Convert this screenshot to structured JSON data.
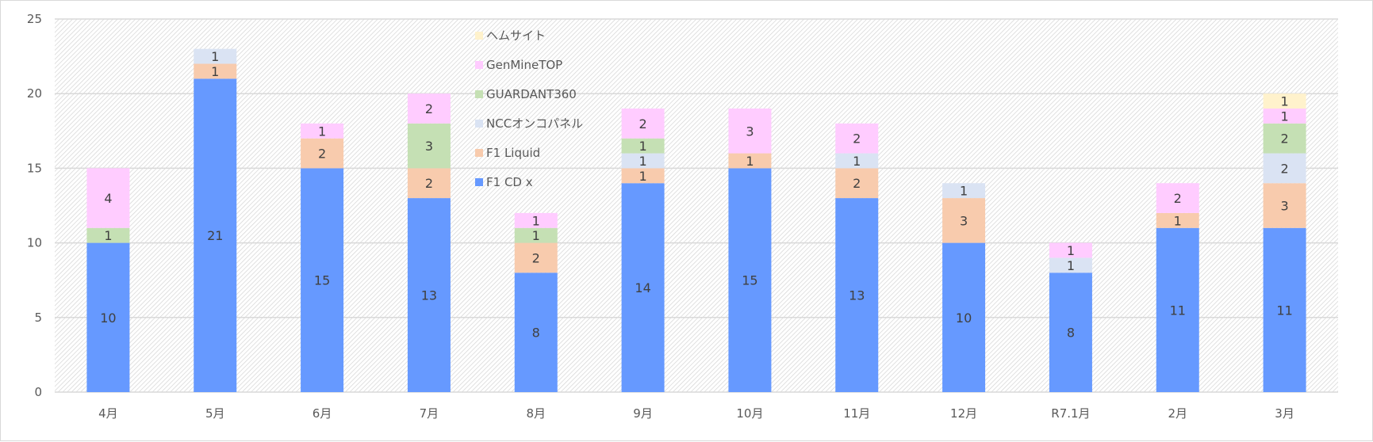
{
  "chart_data": {
    "type": "bar",
    "stacked": true,
    "title": "",
    "xlabel": "",
    "ylabel": "",
    "ylim": [
      0,
      25
    ],
    "yticks": [
      0,
      5,
      10,
      15,
      20,
      25
    ],
    "grid": true,
    "legend_position": "top-center",
    "categories": [
      "4月",
      "5月",
      "6月",
      "7月",
      "8月",
      "9月",
      "10月",
      "11月",
      "12月",
      "R7.1月",
      "2月",
      "3月"
    ],
    "series": [
      {
        "name": "F1 CD x",
        "color": "#6699FF",
        "values": [
          10,
          21,
          15,
          13,
          8,
          14,
          15,
          13,
          10,
          8,
          11,
          11
        ]
      },
      {
        "name": "F1 Liquid",
        "color": "#F8CBAD",
        "values": [
          0,
          1,
          2,
          2,
          2,
          1,
          1,
          2,
          3,
          0,
          1,
          3
        ]
      },
      {
        "name": "NCCオンコパネル",
        "color": "#DAE3F3",
        "values": [
          0,
          1,
          0,
          0,
          0,
          1,
          0,
          1,
          1,
          1,
          0,
          2
        ]
      },
      {
        "name": "GUARDANT360",
        "color": "#C5E0B4",
        "values": [
          1,
          0,
          0,
          3,
          1,
          1,
          0,
          0,
          0,
          0,
          0,
          2
        ]
      },
      {
        "name": "GenMineTOP",
        "color": "#FFCCFF",
        "values": [
          4,
          0,
          1,
          2,
          1,
          2,
          3,
          2,
          0,
          1,
          2,
          1
        ]
      },
      {
        "name": "ヘムサイト",
        "color": "#FFF2CC",
        "values": [
          0,
          0,
          0,
          0,
          0,
          0,
          0,
          0,
          0,
          0,
          0,
          1
        ]
      }
    ]
  }
}
